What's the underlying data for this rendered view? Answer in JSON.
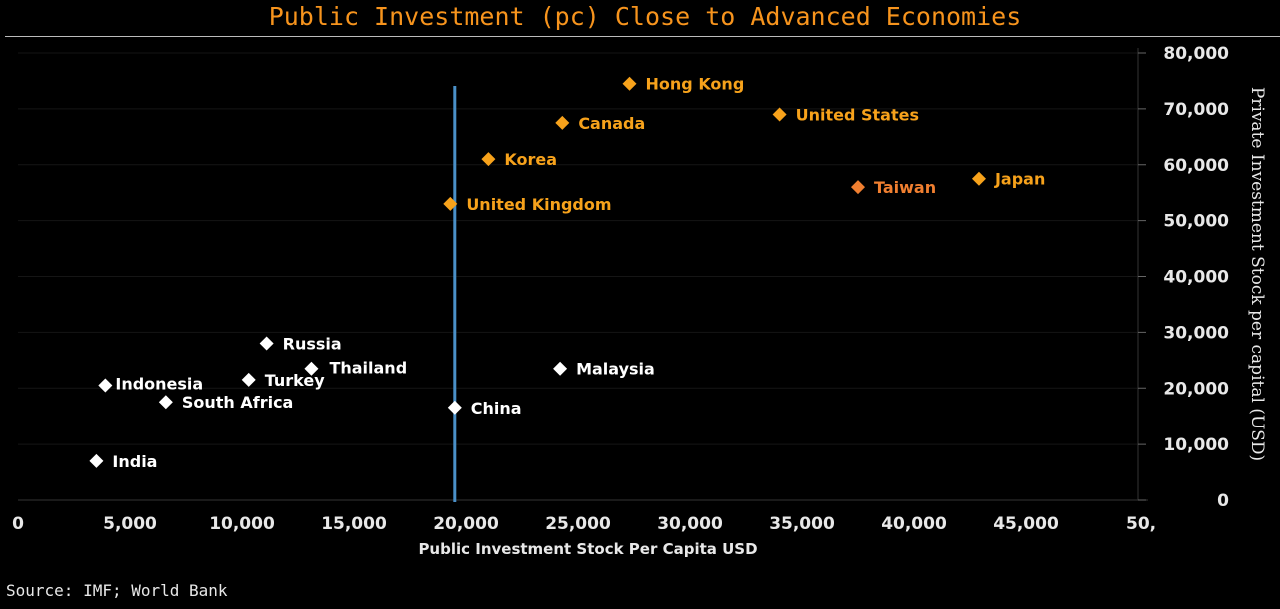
{
  "title": "Public Investment (pc) Close to Advanced Economies",
  "source": "Source: IMF; World Bank",
  "chart_data": {
    "type": "scatter",
    "xlabel": "Public Investment Stock Per Capita USD",
    "ylabel": "Private Investment Stock per capital (USD)",
    "xlim": [
      0,
      50000
    ],
    "ylim": [
      0,
      80000
    ],
    "x_ticks": [
      "0",
      "5,000",
      "10,000",
      "15,000",
      "20,000",
      "25,000",
      "30,000",
      "35,000",
      "40,000",
      "45,000",
      "50,"
    ],
    "y_ticks": [
      "0",
      "10,000",
      "20,000",
      "30,000",
      "40,000",
      "50,000",
      "60,000",
      "70,000",
      "80,000"
    ],
    "reference_line_x": 19500,
    "colors": {
      "advanced": "#f7a21b",
      "taiwan": "#f07f30",
      "emerging": "#ffffff",
      "reference_line": "#4a90c8"
    },
    "points": [
      {
        "name": "Hong Kong",
        "x": 27300,
        "y": 74500,
        "group": "advanced"
      },
      {
        "name": "United States",
        "x": 34000,
        "y": 69000,
        "group": "advanced"
      },
      {
        "name": "Canada",
        "x": 24300,
        "y": 67500,
        "group": "advanced"
      },
      {
        "name": "Korea",
        "x": 21000,
        "y": 61000,
        "group": "advanced"
      },
      {
        "name": "Japan",
        "x": 42900,
        "y": 57500,
        "group": "advanced"
      },
      {
        "name": "Taiwan",
        "x": 37500,
        "y": 56000,
        "group": "taiwan"
      },
      {
        "name": "United Kingdom",
        "x": 19300,
        "y": 53000,
        "group": "advanced"
      },
      {
        "name": "Russia",
        "x": 11100,
        "y": 28000,
        "group": "emerging"
      },
      {
        "name": "Thailand",
        "x": 13100,
        "y": 23500,
        "group": "emerging"
      },
      {
        "name": "Malaysia",
        "x": 24200,
        "y": 23500,
        "group": "emerging"
      },
      {
        "name": "Indonesia",
        "x": 3900,
        "y": 20500,
        "group": "emerging"
      },
      {
        "name": "Turkey",
        "x": 10300,
        "y": 21500,
        "group": "emerging"
      },
      {
        "name": "South Africa",
        "x": 6600,
        "y": 17500,
        "group": "emerging"
      },
      {
        "name": "China",
        "x": 19500,
        "y": 16500,
        "group": "emerging"
      },
      {
        "name": "India",
        "x": 3500,
        "y": 7000,
        "group": "emerging"
      }
    ]
  }
}
